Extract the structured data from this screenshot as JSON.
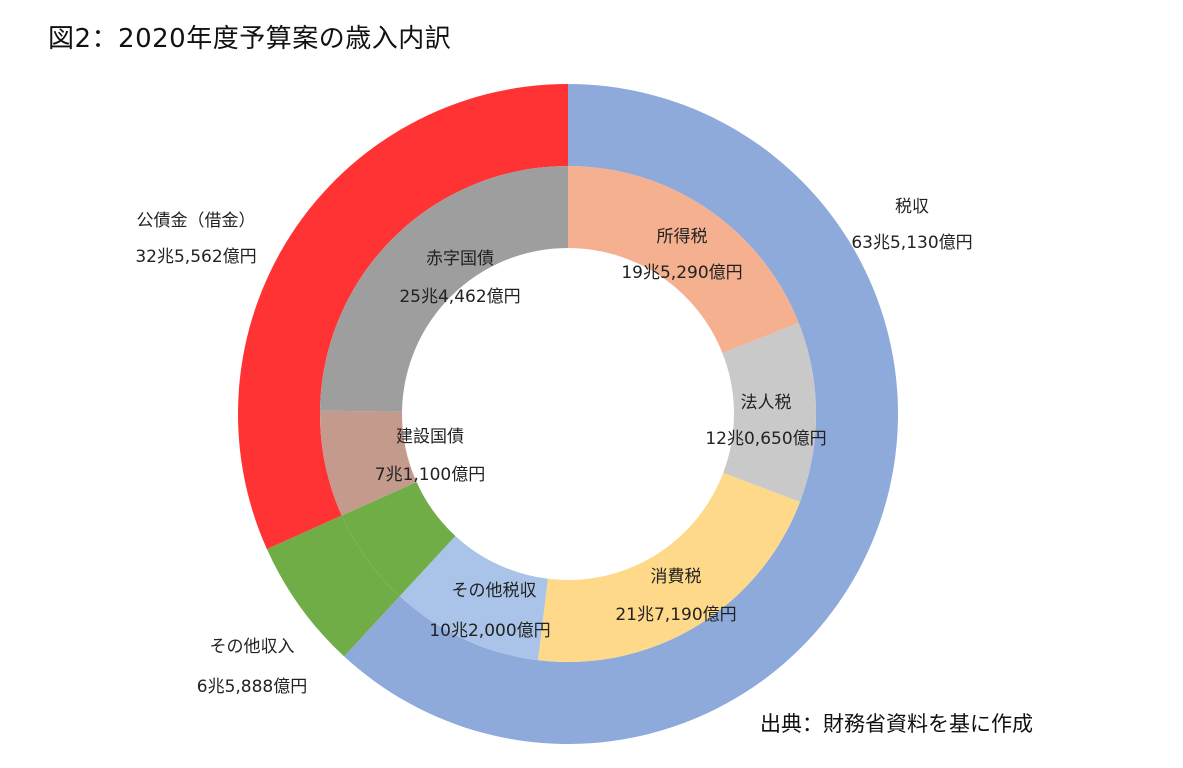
{
  "title": "図2：2020年度予算案の歳入内訳",
  "source": "出典：財務省資料を基に作成",
  "chart_data": {
    "type": "pie",
    "subtype": "nested-donut",
    "unit": "億円",
    "outer": [
      {
        "key": "tax",
        "name": "税収",
        "label": "63兆5,130億円",
        "value": 635130,
        "color": "#8eaadb"
      },
      {
        "key": "other-income",
        "name": "その他収入",
        "label": "6兆5,888億円",
        "value": 65888,
        "color": "#70ad47"
      },
      {
        "key": "bonds",
        "name": "公債金（借金）",
        "label": "32兆5,562億円",
        "value": 325562,
        "color": "#ff3333"
      }
    ],
    "inner": [
      {
        "key": "income-tax",
        "name": "所得税",
        "label": "19兆5,290億円",
        "value": 195290,
        "color": "#f4b08f"
      },
      {
        "key": "corporate-tax",
        "name": "法人税",
        "label": "12兆0,650億円",
        "value": 120650,
        "color": "#c9c9c9"
      },
      {
        "key": "consumption-tax",
        "name": "消費税",
        "label": "21兆7,190億円",
        "value": 217190,
        "color": "#ffd98a"
      },
      {
        "key": "other-tax",
        "name": "その他税収",
        "label": "10兆2,000億円",
        "value": 102000,
        "color": "#a9c4e8"
      },
      {
        "key": "other-income-inner",
        "name": "",
        "label": "",
        "value": 65888,
        "color": "#70ad47"
      },
      {
        "key": "construction-bonds",
        "name": "建設国債",
        "label": "7兆1,100億円",
        "value": 71100,
        "color": "#c49a8c"
      },
      {
        "key": "deficit-bonds",
        "name": "赤字国債",
        "label": "25兆4,462億円",
        "value": 254462,
        "color": "#9e9e9e"
      }
    ]
  }
}
